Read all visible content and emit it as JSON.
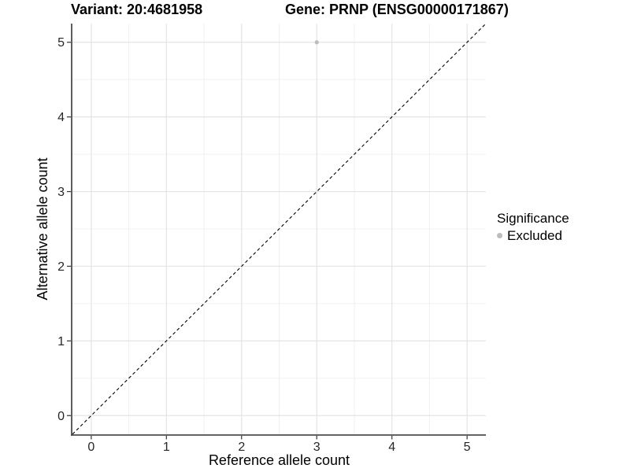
{
  "header": {
    "variant_title": "Variant: 20:4681958",
    "gene_title": "Gene: PRNP (ENSG00000171867)"
  },
  "colors": {
    "background": "#ffffff",
    "grid_major": "#e4e4e4",
    "grid_minor": "#f0f0f0",
    "axis_line": "#4d4d4d",
    "tick_mark": "#333333",
    "tick_text": "#262626",
    "title_text": "#000000",
    "point": "#bcbcbc",
    "reference_line": "#000000"
  },
  "chart_data": {
    "type": "scatter",
    "titles": {
      "variant": "Variant: 20:4681958",
      "gene": "Gene: PRNP (ENSG00000171867)"
    },
    "xlabel": "Reference allele count",
    "ylabel": "Alternative allele count",
    "xlim": [
      -0.25,
      5.25
    ],
    "ylim": [
      -0.25,
      5.25
    ],
    "xticks": [
      0,
      1,
      2,
      3,
      4,
      5
    ],
    "yticks": [
      0,
      1,
      2,
      3,
      4,
      5
    ],
    "xminor": [
      0.5,
      1.5,
      2.5,
      3.5,
      4.5
    ],
    "yminor": [
      0.5,
      1.5,
      2.5,
      3.5,
      4.5
    ],
    "grid": true,
    "series": [
      {
        "name": "Excluded",
        "color": "#bcbcbc",
        "points": [
          [
            3,
            5
          ]
        ]
      }
    ],
    "reference_line": {
      "type": "identity",
      "style": "dashed",
      "from": [
        -0.25,
        -0.25
      ],
      "to": [
        5.25,
        5.25
      ],
      "color": "#000000"
    },
    "legend": {
      "title": "Significance",
      "position": "right",
      "items": [
        {
          "label": "Excluded",
          "color": "#bcbcbc"
        }
      ]
    }
  }
}
